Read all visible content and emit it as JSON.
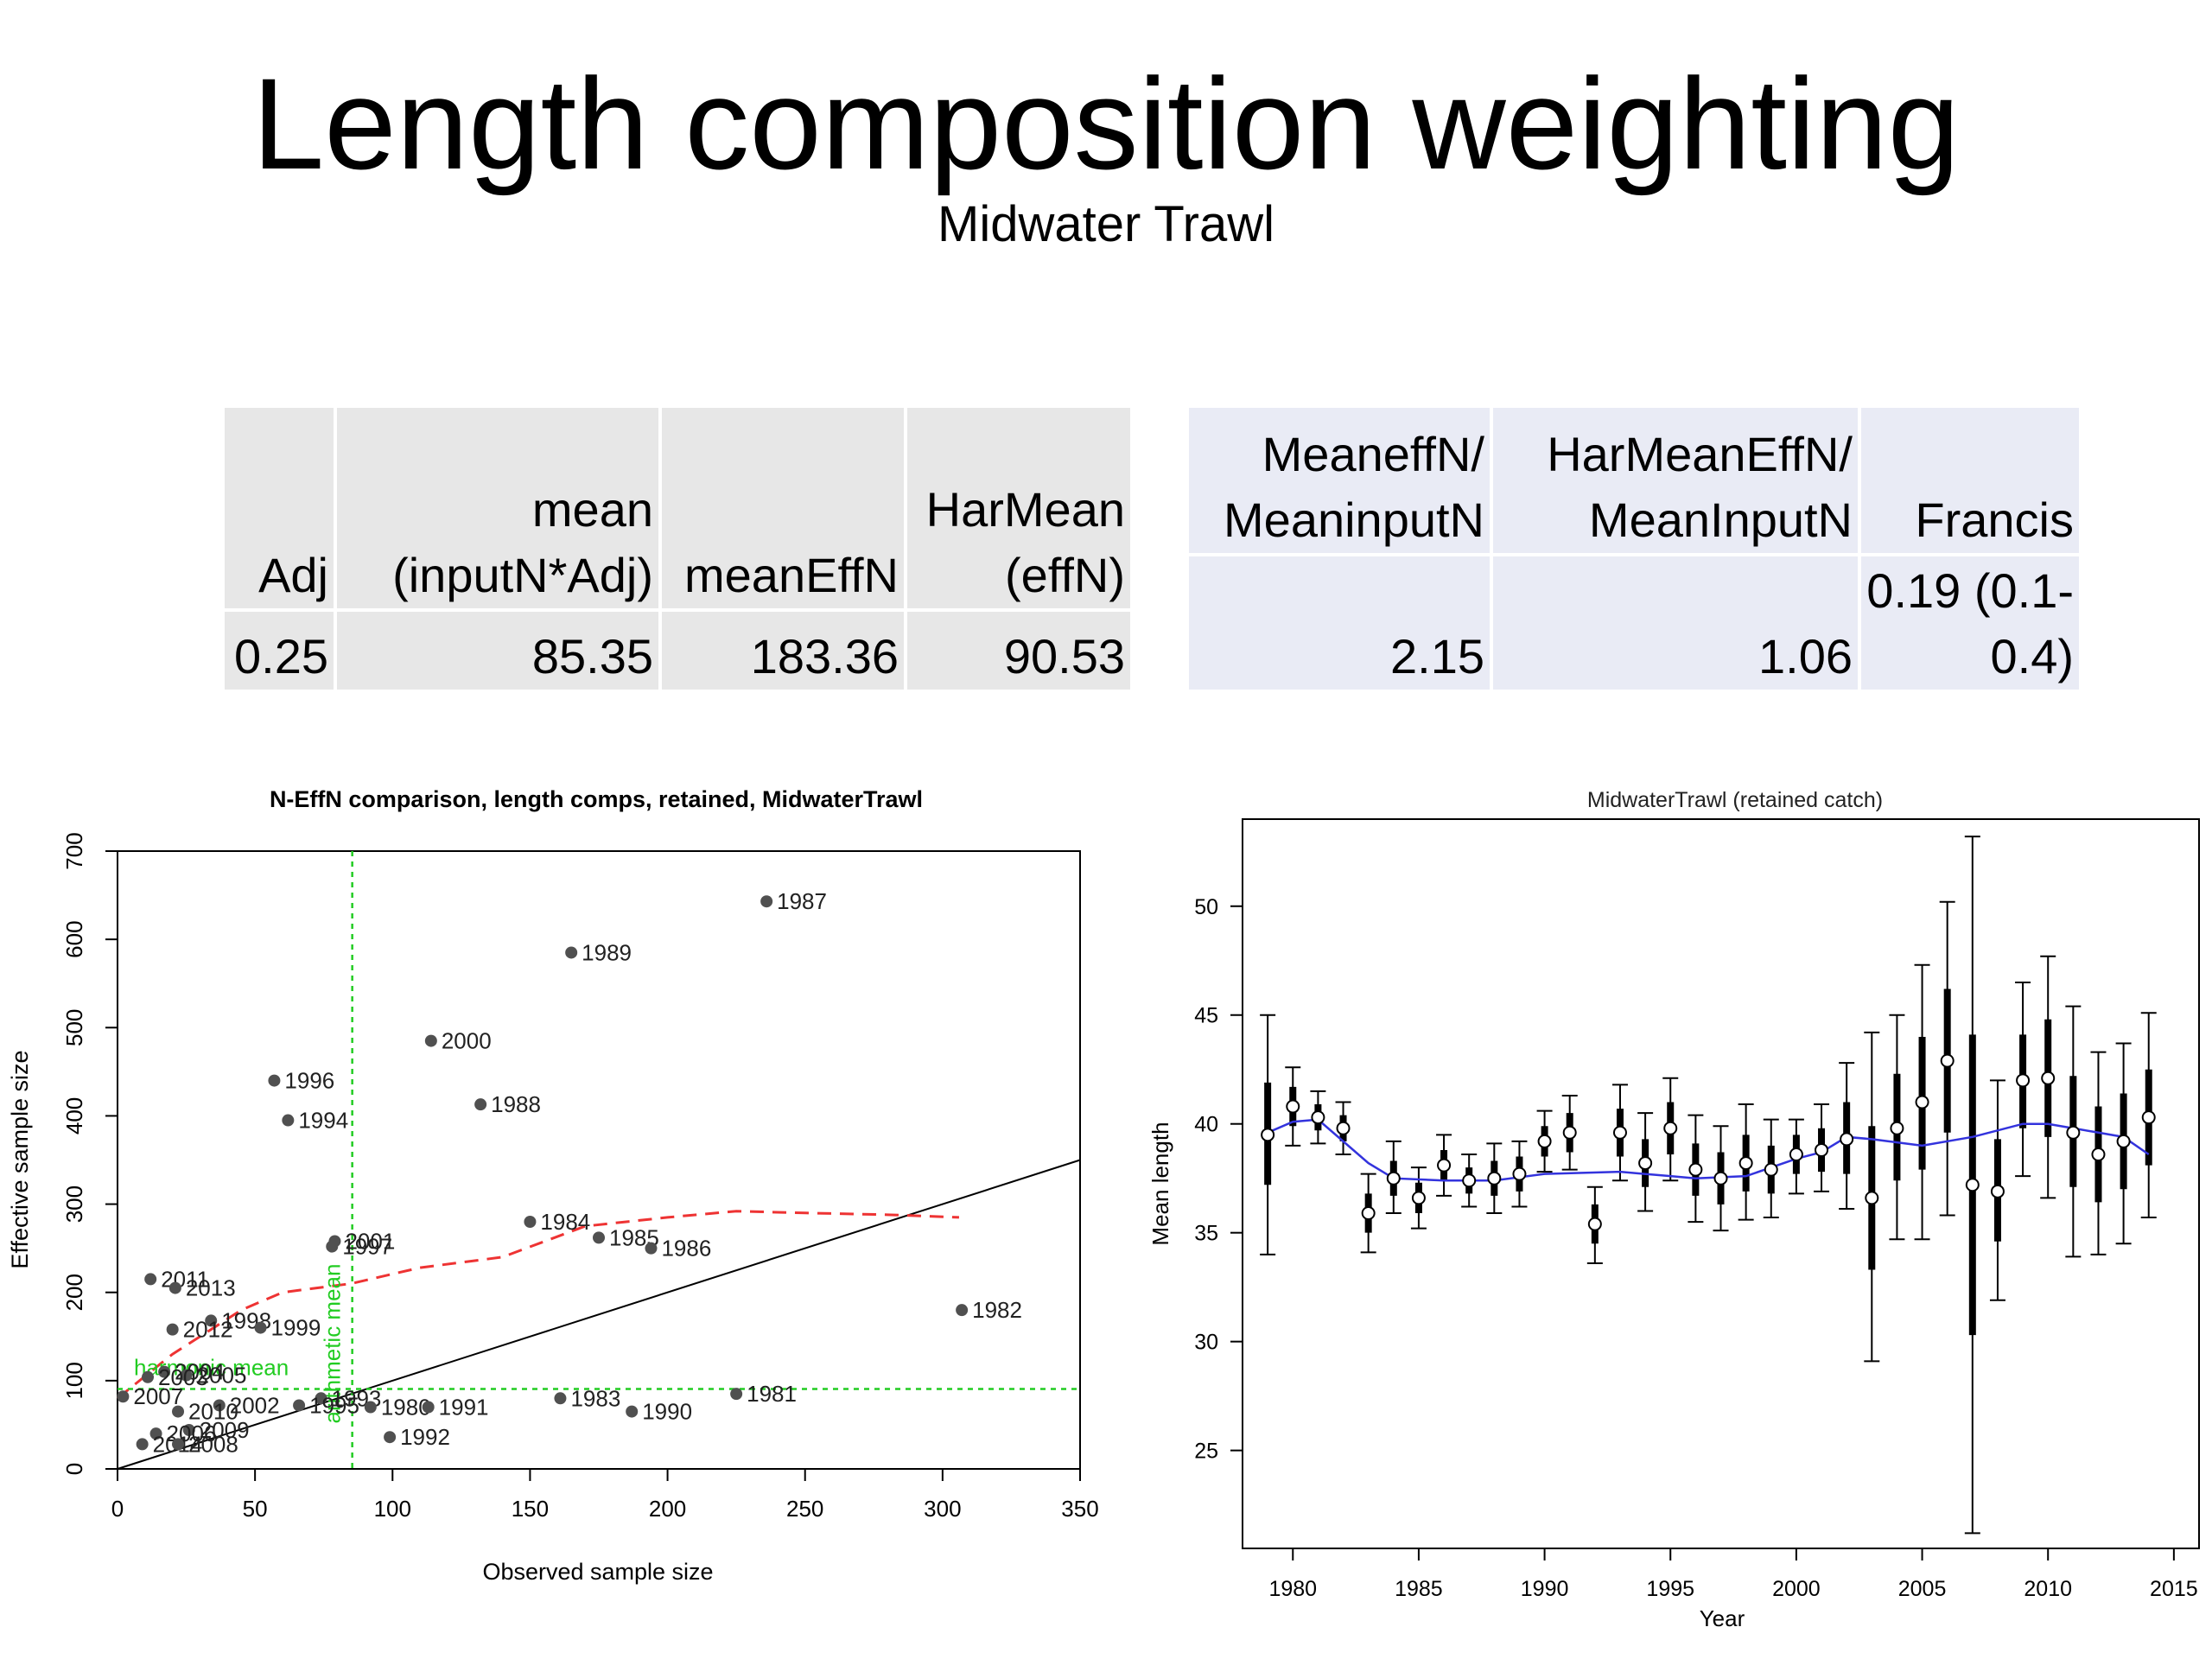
{
  "slide": {
    "title": "Length composition weighting",
    "subtitle": "Midwater Trawl"
  },
  "table_left": {
    "headers": [
      "Adj",
      "mean (inputN*Adj)",
      "meanEffN",
      "HarMean (effN)"
    ],
    "values": [
      "0.25",
      "85.35",
      "183.36",
      "90.53"
    ]
  },
  "table_right": {
    "headers": [
      "MeaneffN/ MeaninputN",
      "HarMeanEffN/ MeanInputN",
      "Francis"
    ],
    "values": [
      "2.15",
      "1.06",
      "0.19 (0.1-0.4)"
    ]
  },
  "chart_data": [
    {
      "type": "scatter",
      "title": "N-EffN comparison, length comps, retained, MidwaterTrawl",
      "xlabel": "Observed sample size",
      "ylabel": "Effective sample size",
      "xlim": [
        0,
        350
      ],
      "ylim": [
        0,
        700
      ],
      "x_ticks": [
        0,
        50,
        100,
        150,
        200,
        250,
        300,
        350
      ],
      "y_ticks": [
        0,
        100,
        200,
        300,
        400,
        500,
        600,
        700
      ],
      "annotations": [
        "harmonic mean",
        "arithmetic mean"
      ],
      "points": [
        {
          "label": "1987",
          "x": 236,
          "y": 643
        },
        {
          "label": "1989",
          "x": 165,
          "y": 585
        },
        {
          "label": "2000",
          "x": 114,
          "y": 485
        },
        {
          "label": "1996",
          "x": 57,
          "y": 440
        },
        {
          "label": "1988",
          "x": 132,
          "y": 413
        },
        {
          "label": "1994",
          "x": 62,
          "y": 395
        },
        {
          "label": "1984",
          "x": 150,
          "y": 280
        },
        {
          "label": "1985",
          "x": 175,
          "y": 262
        },
        {
          "label": "1986",
          "x": 194,
          "y": 250
        },
        {
          "label": "2001",
          "x": 79,
          "y": 258
        },
        {
          "label": "1997",
          "x": 78,
          "y": 252
        },
        {
          "label": "2011",
          "x": 12,
          "y": 215
        },
        {
          "label": "2013",
          "x": 21,
          "y": 205
        },
        {
          "label": "1998",
          "x": 34,
          "y": 168
        },
        {
          "label": "1999",
          "x": 52,
          "y": 160
        },
        {
          "label": "2012",
          "x": 20,
          "y": 158
        },
        {
          "label": "1982",
          "x": 307,
          "y": 180
        },
        {
          "label": "2004",
          "x": 17,
          "y": 110
        },
        {
          "label": "2005",
          "x": 25,
          "y": 106
        },
        {
          "label": "2003",
          "x": 11,
          "y": 104
        },
        {
          "label": "1981",
          "x": 225,
          "y": 85
        },
        {
          "label": "1983",
          "x": 161,
          "y": 80
        },
        {
          "label": "1993",
          "x": 74,
          "y": 80
        },
        {
          "label": "1995",
          "x": 66,
          "y": 72
        },
        {
          "label": "1980",
          "x": 92,
          "y": 70
        },
        {
          "label": "1991",
          "x": 113,
          "y": 70
        },
        {
          "label": "1990",
          "x": 187,
          "y": 65
        },
        {
          "label": "2002",
          "x": 37,
          "y": 72
        },
        {
          "label": "2007",
          "x": 2,
          "y": 82
        },
        {
          "label": "2010",
          "x": 22,
          "y": 65
        },
        {
          "label": "2009",
          "x": 26,
          "y": 44
        },
        {
          "label": "2006",
          "x": 14,
          "y": 40
        },
        {
          "label": "2014",
          "x": 9,
          "y": 28
        },
        {
          "label": "2008",
          "x": 22,
          "y": 28
        },
        {
          "label": "1992",
          "x": 99,
          "y": 36
        }
      ],
      "reference_lines": {
        "one_to_one": true,
        "arithmetic_mean_x": 85.35,
        "harmonic_mean_y": 90.53
      },
      "smoother": [
        [
          0,
          80
        ],
        [
          20,
          130
        ],
        [
          45,
          180
        ],
        [
          60,
          200
        ],
        [
          85,
          210
        ],
        [
          110,
          228
        ],
        [
          140,
          240
        ],
        [
          170,
          275
        ],
        [
          200,
          285
        ],
        [
          225,
          292
        ],
        [
          250,
          290
        ],
        [
          280,
          288
        ],
        [
          306,
          285
        ]
      ]
    },
    {
      "type": "line",
      "title": "MidwaterTrawl (retained catch)",
      "xlabel": "Year",
      "ylabel": "Mean length",
      "xlim": [
        1978,
        2016
      ],
      "ylim": [
        20.5,
        54
      ],
      "x_ticks": [
        1980,
        1985,
        1990,
        1995,
        2000,
        2005,
        2010,
        2015
      ],
      "y_ticks": [
        25,
        30,
        35,
        40,
        45,
        50
      ],
      "series": [
        {
          "obs": [
            {
              "year": 1979,
              "mean": 39.5,
              "thick_lo": 37.2,
              "thick_hi": 41.9,
              "lo": 34.0,
              "hi": 45.0
            },
            {
              "year": 1980,
              "mean": 40.8,
              "thick_lo": 39.9,
              "thick_hi": 41.7,
              "lo": 39.0,
              "hi": 42.6
            },
            {
              "year": 1981,
              "mean": 40.3,
              "thick_lo": 39.7,
              "thick_hi": 40.9,
              "lo": 39.1,
              "hi": 41.5
            },
            {
              "year": 1982,
              "mean": 39.8,
              "thick_lo": 39.2,
              "thick_hi": 40.4,
              "lo": 38.6,
              "hi": 41.0
            },
            {
              "year": 1983,
              "mean": 35.9,
              "thick_lo": 35.0,
              "thick_hi": 36.8,
              "lo": 34.1,
              "hi": 37.7
            },
            {
              "year": 1984,
              "mean": 37.5,
              "thick_lo": 36.7,
              "thick_hi": 38.3,
              "lo": 35.9,
              "hi": 39.2
            },
            {
              "year": 1985,
              "mean": 36.6,
              "thick_lo": 35.9,
              "thick_hi": 37.3,
              "lo": 35.2,
              "hi": 38.0
            },
            {
              "year": 1986,
              "mean": 38.1,
              "thick_lo": 37.4,
              "thick_hi": 38.8,
              "lo": 36.7,
              "hi": 39.5
            },
            {
              "year": 1987,
              "mean": 37.4,
              "thick_lo": 36.8,
              "thick_hi": 38.0,
              "lo": 36.2,
              "hi": 38.6
            },
            {
              "year": 1988,
              "mean": 37.5,
              "thick_lo": 36.7,
              "thick_hi": 38.3,
              "lo": 35.9,
              "hi": 39.1
            },
            {
              "year": 1989,
              "mean": 37.7,
              "thick_lo": 36.9,
              "thick_hi": 38.5,
              "lo": 36.2,
              "hi": 39.2
            },
            {
              "year": 1990,
              "mean": 39.2,
              "thick_lo": 38.5,
              "thick_hi": 39.9,
              "lo": 37.8,
              "hi": 40.6
            },
            {
              "year": 1991,
              "mean": 39.6,
              "thick_lo": 38.7,
              "thick_hi": 40.5,
              "lo": 37.9,
              "hi": 41.3
            },
            {
              "year": 1992,
              "mean": 35.4,
              "thick_lo": 34.5,
              "thick_hi": 36.3,
              "lo": 33.6,
              "hi": 37.1
            },
            {
              "year": 1993,
              "mean": 39.6,
              "thick_lo": 38.5,
              "thick_hi": 40.7,
              "lo": 37.4,
              "hi": 41.8
            },
            {
              "year": 1994,
              "mean": 38.2,
              "thick_lo": 37.1,
              "thick_hi": 39.3,
              "lo": 36.0,
              "hi": 40.5
            },
            {
              "year": 1995,
              "mean": 39.8,
              "thick_lo": 38.6,
              "thick_hi": 41.0,
              "lo": 37.4,
              "hi": 42.1
            },
            {
              "year": 1996,
              "mean": 37.9,
              "thick_lo": 36.7,
              "thick_hi": 39.1,
              "lo": 35.5,
              "hi": 40.4
            },
            {
              "year": 1997,
              "mean": 37.5,
              "thick_lo": 36.3,
              "thick_hi": 38.7,
              "lo": 35.1,
              "hi": 39.9
            },
            {
              "year": 1998,
              "mean": 38.2,
              "thick_lo": 36.9,
              "thick_hi": 39.5,
              "lo": 35.6,
              "hi": 40.9
            },
            {
              "year": 1999,
              "mean": 37.9,
              "thick_lo": 36.8,
              "thick_hi": 39.0,
              "lo": 35.7,
              "hi": 40.2
            },
            {
              "year": 2000,
              "mean": 38.6,
              "thick_lo": 37.7,
              "thick_hi": 39.5,
              "lo": 36.8,
              "hi": 40.2
            },
            {
              "year": 2001,
              "mean": 38.8,
              "thick_lo": 37.8,
              "thick_hi": 39.8,
              "lo": 36.9,
              "hi": 40.9
            },
            {
              "year": 2002,
              "mean": 39.3,
              "thick_lo": 37.7,
              "thick_hi": 41.0,
              "lo": 36.1,
              "hi": 42.8
            },
            {
              "year": 2003,
              "mean": 36.6,
              "thick_lo": 33.3,
              "thick_hi": 39.9,
              "lo": 29.1,
              "hi": 44.2
            },
            {
              "year": 2004,
              "mean": 39.8,
              "thick_lo": 37.4,
              "thick_hi": 42.3,
              "lo": 34.7,
              "hi": 45.0
            },
            {
              "year": 2005,
              "mean": 41.0,
              "thick_lo": 37.9,
              "thick_hi": 44.0,
              "lo": 34.7,
              "hi": 47.3
            },
            {
              "year": 2006,
              "mean": 42.9,
              "thick_lo": 39.6,
              "thick_hi": 46.2,
              "lo": 35.8,
              "hi": 50.2
            },
            {
              "year": 2007,
              "mean": 37.2,
              "thick_lo": 30.3,
              "thick_hi": 44.1,
              "lo": 21.2,
              "hi": 53.2
            },
            {
              "year": 2008,
              "mean": 36.9,
              "thick_lo": 34.6,
              "thick_hi": 39.3,
              "lo": 31.9,
              "hi": 42.0
            },
            {
              "year": 2009,
              "mean": 42.0,
              "thick_lo": 39.8,
              "thick_hi": 44.1,
              "lo": 37.6,
              "hi": 46.5
            },
            {
              "year": 2010,
              "mean": 42.1,
              "thick_lo": 39.4,
              "thick_hi": 44.8,
              "lo": 36.6,
              "hi": 47.7
            },
            {
              "year": 2011,
              "mean": 39.6,
              "thick_lo": 37.1,
              "thick_hi": 42.2,
              "lo": 33.9,
              "hi": 45.4
            },
            {
              "year": 2012,
              "mean": 38.6,
              "thick_lo": 36.4,
              "thick_hi": 40.8,
              "lo": 34.0,
              "hi": 43.3
            },
            {
              "year": 2013,
              "mean": 39.2,
              "thick_lo": 37.0,
              "thick_hi": 41.4,
              "lo": 34.5,
              "hi": 43.7
            },
            {
              "year": 2014,
              "mean": 40.3,
              "thick_lo": 38.1,
              "thick_hi": 42.5,
              "lo": 35.7,
              "hi": 45.1
            }
          ],
          "fit": [
            [
              1979,
              39.6
            ],
            [
              1980,
              40.1
            ],
            [
              1981,
              40.2
            ],
            [
              1982,
              39.2
            ],
            [
              1983,
              38.2
            ],
            [
              1984,
              37.5
            ],
            [
              1986,
              37.4
            ],
            [
              1988,
              37.4
            ],
            [
              1990,
              37.7
            ],
            [
              1993,
              37.8
            ],
            [
              1995,
              37.6
            ],
            [
              1996,
              37.5
            ],
            [
              1998,
              37.6
            ],
            [
              2000,
              38.4
            ],
            [
              2001,
              38.7
            ],
            [
              2002,
              39.4
            ],
            [
              2003,
              39.3
            ],
            [
              2005,
              39.0
            ],
            [
              2007,
              39.4
            ],
            [
              2009,
              40.0
            ],
            [
              2010,
              40.0
            ],
            [
              2011,
              39.8
            ],
            [
              2012,
              39.6
            ],
            [
              2013,
              39.4
            ],
            [
              2014,
              38.6
            ]
          ]
        }
      ]
    }
  ]
}
